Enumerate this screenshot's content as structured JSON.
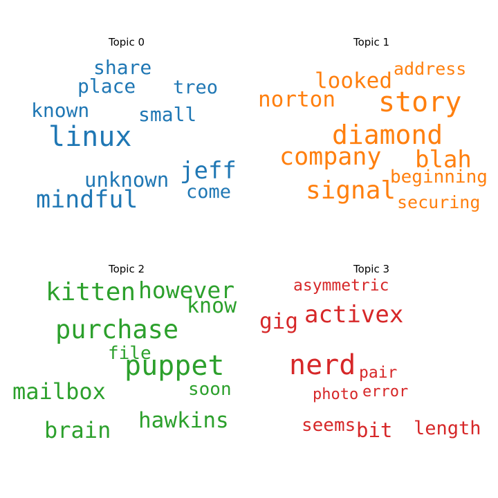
{
  "chart_data": {
    "type": "wordcloud",
    "topics": [
      {
        "title": "Topic 0",
        "color": "#1f77b4",
        "words": [
          {
            "text": "linux",
            "weight": 1.0
          },
          {
            "text": "mindful",
            "weight": 0.88
          },
          {
            "text": "jeff",
            "weight": 0.85
          },
          {
            "text": "unknown",
            "weight": 0.72
          },
          {
            "text": "share",
            "weight": 0.7
          },
          {
            "text": "small",
            "weight": 0.7
          },
          {
            "text": "known",
            "weight": 0.7
          },
          {
            "text": "place",
            "weight": 0.69
          },
          {
            "text": "treo",
            "weight": 0.68
          },
          {
            "text": "come",
            "weight": 0.67
          }
        ]
      },
      {
        "title": "Topic 1",
        "color": "#ff7f0e",
        "words": [
          {
            "text": "story",
            "weight": 1.0
          },
          {
            "text": "diamond",
            "weight": 0.95
          },
          {
            "text": "signal",
            "weight": 0.9
          },
          {
            "text": "company",
            "weight": 0.88
          },
          {
            "text": "blah",
            "weight": 0.85
          },
          {
            "text": "looked",
            "weight": 0.78
          },
          {
            "text": "norton",
            "weight": 0.77
          },
          {
            "text": "beginning",
            "weight": 0.65
          },
          {
            "text": "address",
            "weight": 0.63
          },
          {
            "text": "securing",
            "weight": 0.63
          }
        ]
      },
      {
        "title": "Topic 2",
        "color": "#2ca02c",
        "words": [
          {
            "text": "puppet",
            "weight": 1.0
          },
          {
            "text": "purchase",
            "weight": 0.92
          },
          {
            "text": "kitten",
            "weight": 0.9
          },
          {
            "text": "however",
            "weight": 0.82
          },
          {
            "text": "brain",
            "weight": 0.8
          },
          {
            "text": "mailbox",
            "weight": 0.8
          },
          {
            "text": "hawkins",
            "weight": 0.77
          },
          {
            "text": "know",
            "weight": 0.76
          },
          {
            "text": "soon",
            "weight": 0.65
          },
          {
            "text": "file",
            "weight": 0.65
          }
        ]
      },
      {
        "title": "Topic 3",
        "color": "#d62728",
        "words": [
          {
            "text": "nerd",
            "weight": 1.0
          },
          {
            "text": "activex",
            "weight": 0.85
          },
          {
            "text": "gig",
            "weight": 0.77
          },
          {
            "text": "bit",
            "weight": 0.72
          },
          {
            "text": "length",
            "weight": 0.68
          },
          {
            "text": "seems",
            "weight": 0.65
          },
          {
            "text": "asymmetric",
            "weight": 0.58
          },
          {
            "text": "pair",
            "weight": 0.58
          },
          {
            "text": "error",
            "weight": 0.55
          },
          {
            "text": "photo",
            "weight": 0.55
          }
        ]
      }
    ]
  }
}
